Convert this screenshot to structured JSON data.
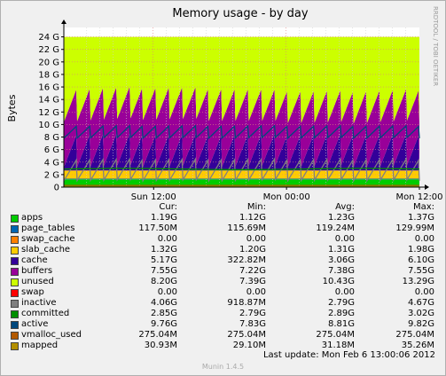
{
  "chart_data": {
    "type": "area",
    "title": "Memory usage - by day",
    "ylabel": "Bytes",
    "watermark": "RRDTOOL / TOBI OETIKER",
    "ylim": [
      0,
      25.5
    ],
    "yticks": [
      {
        "value": 0,
        "label": "0"
      },
      {
        "value": 2,
        "label": "2 G"
      },
      {
        "value": 4,
        "label": "4 G"
      },
      {
        "value": 6,
        "label": "6 G"
      },
      {
        "value": 8,
        "label": "8 G"
      },
      {
        "value": 10,
        "label": "10 G"
      },
      {
        "value": 12,
        "label": "12 G"
      },
      {
        "value": 14,
        "label": "14 G"
      },
      {
        "value": 16,
        "label": "16 G"
      },
      {
        "value": 18,
        "label": "18 G"
      },
      {
        "value": 20,
        "label": "20 G"
      },
      {
        "value": 22,
        "label": "22 G"
      },
      {
        "value": 24,
        "label": "24 G"
      }
    ],
    "xticks": [
      {
        "value": 0.2526,
        "label": "Sun 12:00"
      },
      {
        "value": 0.6263,
        "label": "Mon 00:00"
      },
      {
        "value": 1.0,
        "label": "Mon 12:00"
      }
    ],
    "xlim": [
      0,
      1.0
    ],
    "cycles": 27,
    "stack_order": [
      "apps",
      "page_tables",
      "swap_cache",
      "slab_cache",
      "cache",
      "buffers",
      "unused",
      "swap"
    ],
    "line_series": [
      "inactive",
      "committed",
      "active",
      "vmalloc_used",
      "mapped"
    ],
    "stats_headers": {
      "cur": "Cur:",
      "min": "Min:",
      "avg": "Avg:",
      "max": "Max:"
    },
    "series": [
      {
        "name": "apps",
        "color": "#00cc00",
        "cur": "1.19G",
        "min": "1.12G",
        "avg": "1.23G",
        "max": "1.37G",
        "avg_g": 1.23
      },
      {
        "name": "page_tables",
        "color": "#0066b3",
        "cur": "117.50M",
        "min": "115.69M",
        "avg": "119.24M",
        "max": "129.99M",
        "avg_g": 0.12
      },
      {
        "name": "swap_cache",
        "color": "#ff8000",
        "cur": "0.00",
        "min": "0.00",
        "avg": "0.00",
        "max": "0.00",
        "avg_g": 0.0
      },
      {
        "name": "slab_cache",
        "color": "#ffcc00",
        "cur": "1.32G",
        "min": "1.20G",
        "avg": "1.31G",
        "max": "1.98G",
        "avg_g": 1.31
      },
      {
        "name": "cache",
        "color": "#330099",
        "cur": "5.17G",
        "min": "322.82M",
        "avg": "3.06G",
        "max": "6.10G",
        "avg_g": 3.06
      },
      {
        "name": "buffers",
        "color": "#990099",
        "cur": "7.55G",
        "min": "7.22G",
        "avg": "7.38G",
        "max": "7.55G",
        "avg_g": 7.38
      },
      {
        "name": "unused",
        "color": "#ccff00",
        "cur": "8.20G",
        "min": "7.39G",
        "avg": "10.43G",
        "max": "13.29G",
        "avg_g": 10.43
      },
      {
        "name": "swap",
        "color": "#ff0000",
        "cur": "0.00",
        "min": "0.00",
        "avg": "0.00",
        "max": "0.00",
        "avg_g": 0.0
      },
      {
        "name": "inactive",
        "color": "#808080",
        "cur": "4.06G",
        "min": "918.87M",
        "avg": "2.79G",
        "max": "4.67G",
        "avg_g": 2.79
      },
      {
        "name": "committed",
        "color": "#008f00",
        "cur": "2.85G",
        "min": "2.79G",
        "avg": "2.89G",
        "max": "3.02G",
        "avg_g": 2.89
      },
      {
        "name": "active",
        "color": "#00487d",
        "cur": "9.76G",
        "min": "7.83G",
        "avg": "8.81G",
        "max": "9.82G",
        "avg_g": 8.81
      },
      {
        "name": "vmalloc_used",
        "color": "#b35a00",
        "cur": "275.04M",
        "min": "275.04M",
        "avg": "275.04M",
        "max": "275.04M",
        "avg_g": 0.275
      },
      {
        "name": "mapped",
        "color": "#b38f00",
        "cur": "30.93M",
        "min": "29.10M",
        "avg": "31.18M",
        "max": "35.26M",
        "avg_g": 0.031
      }
    ]
  },
  "footer": {
    "last_update": "Last update: Mon Feb  6 13:00:06 2012",
    "version": "Munin 1.4.5"
  }
}
